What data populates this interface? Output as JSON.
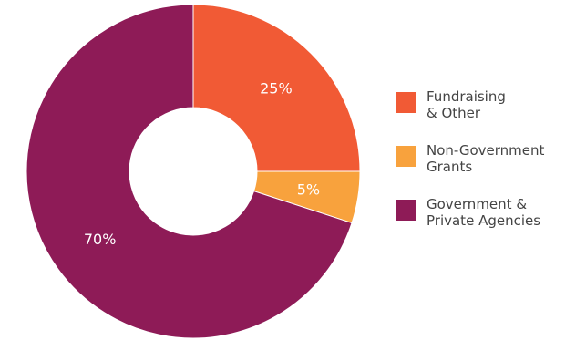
{
  "chart_data": {
    "type": "pie",
    "variant": "donut",
    "title": "",
    "slices": [
      {
        "label": "Fundraising\n& Other",
        "value": 25,
        "display": "25%",
        "color": "#F15A35"
      },
      {
        "label": "Non-Government\nGrants",
        "value": 5,
        "display": "5%",
        "color": "#F8A23D"
      },
      {
        "label": "Government &\nPrivate Agencies",
        "value": 70,
        "display": "70%",
        "color": "#8E1B57"
      }
    ],
    "start_angle_deg": 0,
    "direction": "clockwise",
    "legend_position": "right"
  }
}
